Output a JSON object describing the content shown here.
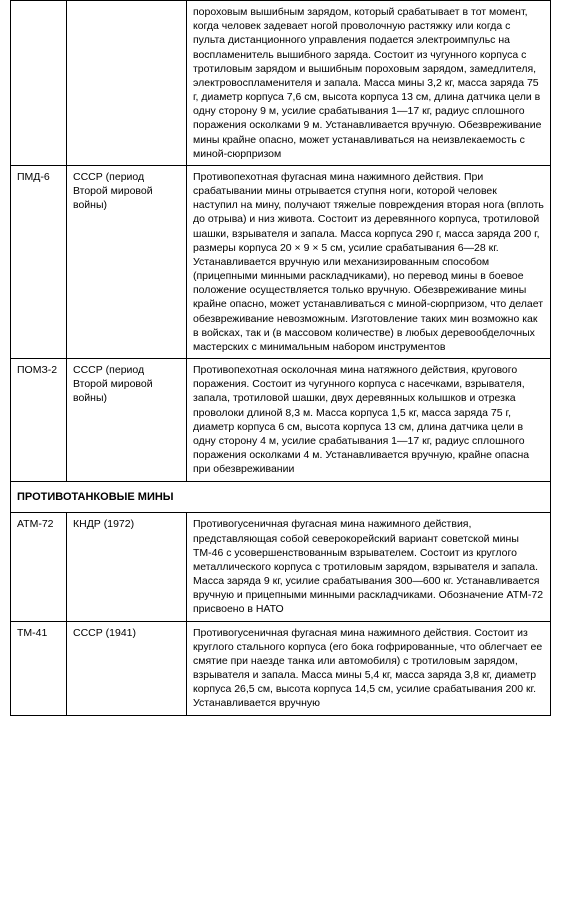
{
  "rows": {
    "r0": {
      "name": "",
      "origin": "",
      "desc": "пороховым вышибным зарядом, который срабатывает в тот момент, когда человек задевает ногой проволочную растяжку или когда с пульта дистанционного управления подается электроимпульс на воспламенитель вышибного заряда. Состоит из чугунного корпуса с тротиловым зарядом и вышибным пороховым зарядом, замедлителя, электровоспламенителя и запала. Масса мины 3,2 кг, масса заряда 75 г, диаметр корпуса 7,6 см, высота корпуса 13 см, длина датчика цели в одну сторону 9 м, усилие срабатывания 1—17 кг, радиус сплошного поражения осколками 9 м. Устанавливается вручную. Обезвреживание мины крайне опасно, может устанавливаться на неизвлекаемость с миной-сюрпризом"
    },
    "r1": {
      "name": "ПМД-6",
      "origin": "СССР (период Второй мировой войны)",
      "desc": "Противопехотная фугасная мина нажимного действия. При срабатывании мины отрывается ступня ноги, которой человек наступил на мину, получают тяжелые повреждения вторая нога (вплоть до отрыва) и низ живота. Состоит из деревянного корпуса, тротиловой шашки, взрывателя и запала. Масса корпуса 290 г, масса заряда 200 г, размеры корпуса 20 × 9 × 5 см, усилие срабатывания 6—28 кг. Устанавливается вручную или механизированным способом (прицепными минными раскладчиками), но перевод мины в боевое положение осуществляется только вручную. Обезвреживание мины крайне опасно, может устанавливаться с миной-сюрпризом, что делает обезвреживание невозможным. Изготовление таких мин возможно как в войсках, так и (в массовом количестве) в любых деревообделочных мастерских с минимальным набором инструментов"
    },
    "r2": {
      "name": "ПОМЗ-2",
      "origin": "СССР (период Второй мировой войны)",
      "desc": "Противопехотная осколочная мина натяжного действия, кругового поражения. Состоит из чугунного корпуса с насечками, взрывателя, запала, тротиловой шашки, двух деревянных колышков и отрезка проволоки длиной 8,3 м. Масса корпуса 1,5 кг, масса заряда 75 г, диаметр корпуса 6 см, высота корпуса 13 см, длина датчика цели в одну сторону 4 м, усилие срабатывания 1—17 кг, радиус сплошного поражения осколками 4 м. Устанавливается вручную, крайне опасна при обезвреживании"
    },
    "section": {
      "title": "ПРОТИВОТАНКОВЫЕ МИНЫ"
    },
    "r3": {
      "name": "АТМ-72",
      "origin": "КНДР (1972)",
      "desc": "Противогусеничная фугасная мина нажимного действия, представляющая собой северокорейский вариант советской мины ТМ-46 с усовершенствованным взрывателем. Состоит из круглого металлического корпуса с тротиловым зарядом, взрывателя и запала. Масса заряда 9 кг, усилие срабатывания 300—600 кг. Устанавливается вручную и прицепными минными раскладчиками. Обозначение АТМ-72 присвоено в НАТО"
    },
    "r4": {
      "name": "ТМ-41",
      "origin": "СССР (1941)",
      "desc": "Противогусеничная фугасная мина нажимного действия. Состоит из круглого стального корпуса (его бока гофрированные, что облегчает ее смятие при наезде танка или автомобиля) с тротиловым зарядом, взрывателя и запала. Масса мины 5,4 кг, масса заряда 3,8 кг, диаметр корпуса 26,5 см, высота корпуса 14,5 см, усилие срабатывания 200 кг. Устанавливается вручную"
    }
  }
}
